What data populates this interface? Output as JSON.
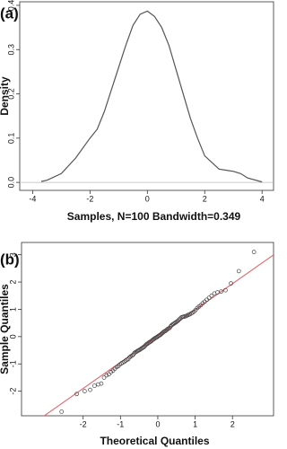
{
  "chart_data": [
    {
      "type": "line",
      "panel_label": "(a)",
      "xlabel": "Samples, N=100 Bandwidth=0.349",
      "ylabel": "Density",
      "color": "#555555",
      "zero_line": true,
      "x": [
        -3.7,
        -3.5,
        -3,
        -2.5,
        -2,
        -1.75,
        -1.5,
        -1.25,
        -1,
        -0.75,
        -0.5,
        -0.25,
        0,
        0.25,
        0.5,
        0.75,
        1,
        1.25,
        1.5,
        1.75,
        2,
        2.5,
        3,
        3.25,
        3.5,
        4
      ],
      "values": [
        0.002,
        0.005,
        0.02,
        0.055,
        0.1,
        0.12,
        0.16,
        0.21,
        0.26,
        0.31,
        0.355,
        0.38,
        0.387,
        0.375,
        0.35,
        0.31,
        0.255,
        0.2,
        0.145,
        0.1,
        0.06,
        0.03,
        0.025,
        0.02,
        0.01,
        0.001
      ],
      "xlim": [
        -4.45,
        4.4
      ],
      "xticks": [
        -4,
        -2,
        0,
        2,
        4
      ],
      "ylim": [
        -0.018,
        0.408
      ],
      "yticks": [
        {
          "value": 0,
          "label": "0.0"
        },
        0.1,
        0.2,
        0.3,
        0.4
      ]
    },
    {
      "type": "scatter",
      "panel_label": "(b)",
      "xlabel": "Theoretical Quantiles",
      "ylabel": "Sample Quantiles",
      "color": "#444444",
      "qqline": {
        "intercept": 0.02,
        "slope": 0.96,
        "color": "#e06870"
      },
      "x": [
        -2.576,
        -2.17,
        -1.96,
        -1.812,
        -1.695,
        -1.598,
        -1.514,
        -1.44,
        -1.372,
        -1.311,
        -1.254,
        -1.2,
        -1.15,
        -1.103,
        -1.058,
        -1.015,
        -0.974,
        -0.935,
        -0.896,
        -0.86,
        -0.824,
        -0.789,
        -0.755,
        -0.722,
        -0.69,
        -0.659,
        -0.628,
        -0.598,
        -0.568,
        -0.539,
        -0.51,
        -0.482,
        -0.454,
        -0.426,
        -0.399,
        -0.372,
        -0.345,
        -0.319,
        -0.292,
        -0.266,
        -0.24,
        -0.215,
        -0.189,
        -0.164,
        -0.138,
        -0.113,
        -0.088,
        -0.063,
        -0.038,
        -0.013,
        0.013,
        0.038,
        0.063,
        0.088,
        0.113,
        0.138,
        0.164,
        0.189,
        0.215,
        0.24,
        0.266,
        0.292,
        0.319,
        0.345,
        0.372,
        0.399,
        0.426,
        0.454,
        0.482,
        0.51,
        0.539,
        0.568,
        0.598,
        0.628,
        0.659,
        0.69,
        0.722,
        0.755,
        0.789,
        0.824,
        0.86,
        0.896,
        0.935,
        0.974,
        1.015,
        1.058,
        1.103,
        1.15,
        1.2,
        1.254,
        1.311,
        1.372,
        1.44,
        1.514,
        1.598,
        1.695,
        1.812,
        1.96,
        2.17,
        2.576
      ],
      "y": [
        -2.75,
        -2.1,
        -2.0,
        -1.95,
        -1.8,
        -1.75,
        -1.72,
        -1.5,
        -1.42,
        -1.38,
        -1.3,
        -1.25,
        -1.18,
        -1.12,
        -1.08,
        -1.02,
        -0.98,
        -0.95,
        -0.92,
        -0.88,
        -0.85,
        -0.82,
        -0.76,
        -0.72,
        -0.7,
        -0.66,
        -0.6,
        -0.57,
        -0.55,
        -0.52,
        -0.5,
        -0.48,
        -0.45,
        -0.43,
        -0.4,
        -0.38,
        -0.34,
        -0.3,
        -0.27,
        -0.25,
        -0.22,
        -0.2,
        -0.18,
        -0.15,
        -0.12,
        -0.1,
        -0.07,
        -0.05,
        -0.03,
        -0.01,
        0.02,
        0.04,
        0.06,
        0.09,
        0.12,
        0.15,
        0.18,
        0.2,
        0.22,
        0.25,
        0.28,
        0.3,
        0.32,
        0.38,
        0.42,
        0.45,
        0.47,
        0.5,
        0.52,
        0.55,
        0.58,
        0.62,
        0.66,
        0.7,
        0.72,
        0.73,
        0.74,
        0.75,
        0.78,
        0.8,
        0.82,
        0.85,
        0.88,
        0.92,
        0.98,
        1.05,
        1.1,
        1.15,
        1.22,
        1.28,
        1.35,
        1.42,
        1.5,
        1.58,
        1.62,
        1.65,
        1.7,
        1.95,
        2.4,
        3.1
      ],
      "xlim": [
        -3.65,
        3.1
      ],
      "xticks": [
        -2,
        -1,
        0,
        1,
        2
      ],
      "ylim": [
        -2.9,
        3.45
      ],
      "yticks": [
        -2,
        -1,
        0,
        1,
        2,
        3
      ]
    }
  ]
}
